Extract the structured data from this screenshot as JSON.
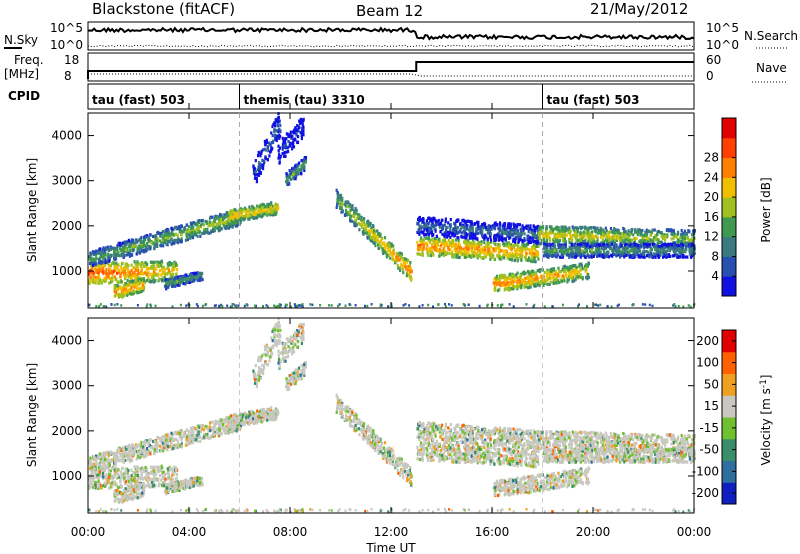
{
  "header": {
    "left": "Blackstone (fitACF)",
    "center": "Beam 12",
    "right": "21/May/2012"
  },
  "panels": {
    "nsky_label": "N.Sky",
    "nsearch_label": "N.Search",
    "freq_label_1": "Freq.",
    "freq_label_2": "[MHz]",
    "nave_label": "Nave",
    "cpid_label": "CPID",
    "nsky_ticks": [
      "10^5",
      "10^0"
    ],
    "nsearch_ticks": [
      "10^5",
      "10^0"
    ],
    "freq_ticks": [
      "18",
      "8"
    ],
    "nave_ticks": [
      "60",
      "0"
    ],
    "cpid_segments": [
      {
        "label": "tau (fast) 503",
        "start_h": 0
      },
      {
        "label": "themis (tau) 3310",
        "start_h": 6
      },
      {
        "label": "tau (fast) 503",
        "start_h": 18
      }
    ]
  },
  "axes": {
    "xlabel": "Time UT",
    "ylabel": "Slant Range [km]",
    "x_ticks": [
      "00:00",
      "04:00",
      "08:00",
      "12:00",
      "16:00",
      "20:00",
      "00:00"
    ],
    "y_ticks": [
      "1000",
      "2000",
      "3000",
      "4000"
    ]
  },
  "colorbars": {
    "power": {
      "label": "Power [dB]",
      "ticks": [
        "4",
        "8",
        "12",
        "16",
        "20",
        "24",
        "28"
      ],
      "colors": [
        "#1010e0",
        "#2850b0",
        "#3a7a80",
        "#3f9a50",
        "#a0c020",
        "#f0c000",
        "#ff8000",
        "#ff4000",
        "#e00000"
      ]
    },
    "velocity": {
      "label": "Velocity [m s",
      "label_sup": "-1",
      "label_end": "]",
      "ticks": [
        "200",
        "100",
        "50",
        "15",
        "-15",
        "-50",
        "-100",
        "-200"
      ],
      "colors": [
        "#1020c0",
        "#2f6fa0",
        "#3a8f6a",
        "#70c030",
        "#c8c8c0",
        "#f0a020",
        "#ff6000",
        "#e00000"
      ]
    }
  },
  "chart_data": {
    "type": "heatmap",
    "title": "Blackstone (fitACF)",
    "xlabel": "Time UT",
    "ylabel": "Slant Range [km]",
    "x_range_hours": [
      0,
      24
    ],
    "y_range_km": [
      180,
      4500
    ],
    "grid": false,
    "scatter_bands": [
      {
        "t0": 0.0,
        "t1": 3.5,
        "r0": 950,
        "r1": 1000,
        "p0": 26,
        "p1": 20,
        "w": 230
      },
      {
        "t0": 0.0,
        "t1": 6.0,
        "r0": 1250,
        "r1": 2200,
        "p0": 14,
        "p1": 18,
        "w": 180
      },
      {
        "t0": 1.0,
        "t1": 2.2,
        "r0": 520,
        "r1": 700,
        "p0": 24,
        "p1": 22,
        "w": 150
      },
      {
        "t0": 3.0,
        "t1": 4.5,
        "r0": 700,
        "r1": 900,
        "p0": 14,
        "p1": 14,
        "w": 100
      },
      {
        "t0": 5.5,
        "t1": 7.5,
        "r0": 2200,
        "r1": 2400,
        "p0": 22,
        "p1": 20,
        "w": 140
      },
      {
        "t0": 6.5,
        "t1": 7.6,
        "r0": 3100,
        "r1": 4300,
        "p0": 8,
        "p1": 10,
        "w": 300
      },
      {
        "t0": 7.5,
        "t1": 8.5,
        "r0": 3600,
        "r1": 4200,
        "p0": 6,
        "p1": 6,
        "w": 250
      },
      {
        "t0": 7.8,
        "t1": 8.6,
        "r0": 3000,
        "r1": 3400,
        "p0": 14,
        "p1": 14,
        "w": 150
      },
      {
        "t0": 9.8,
        "t1": 12.8,
        "r0": 2600,
        "r1": 950,
        "p0": 16,
        "p1": 24,
        "w": 200
      },
      {
        "t0": 13.0,
        "t1": 17.8,
        "r0": 1550,
        "r1": 1400,
        "p0": 24,
        "p1": 22,
        "w": 200
      },
      {
        "t0": 13.0,
        "t1": 17.8,
        "r0": 2000,
        "r1": 1800,
        "p0": 10,
        "p1": 10,
        "w": 200
      },
      {
        "t0": 16.0,
        "t1": 19.8,
        "r0": 700,
        "r1": 1000,
        "p0": 24,
        "p1": 20,
        "w": 180
      },
      {
        "t0": 17.8,
        "t1": 24.0,
        "r0": 1800,
        "r1": 1700,
        "p0": 20,
        "p1": 16,
        "w": 200
      },
      {
        "t0": 18.0,
        "t1": 24.0,
        "r0": 1450,
        "r1": 1450,
        "p0": 14,
        "p1": 12,
        "w": 150
      }
    ],
    "cpid_changes_h": [
      6,
      18
    ],
    "freq_step_h": 13
  }
}
